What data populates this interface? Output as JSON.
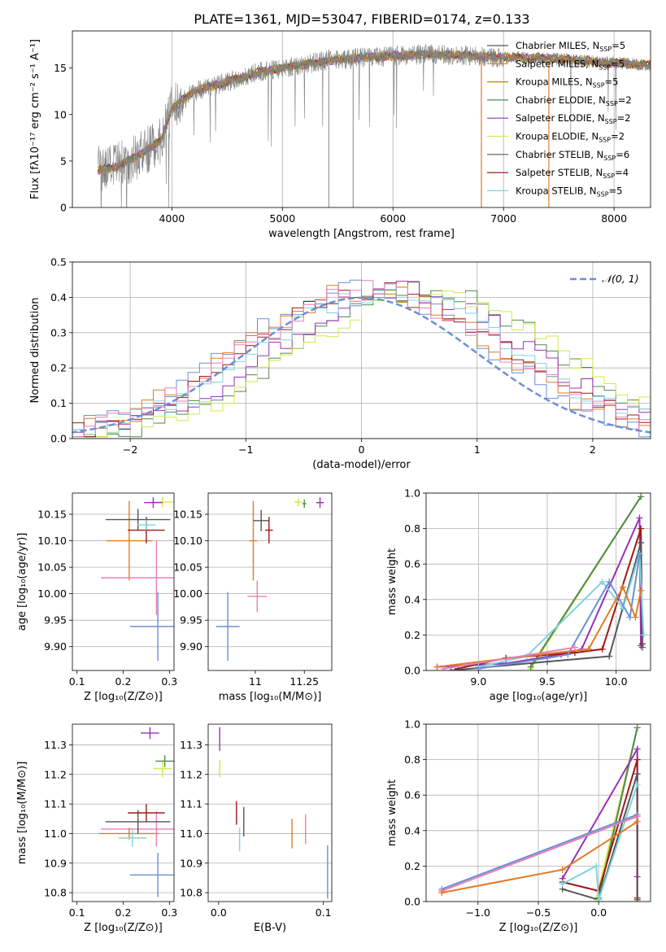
{
  "figure": {
    "title": "PLATE=1361, MJD=53047, FIBERID=0174, z=0.133"
  },
  "colors": {
    "chabrier_miles": "#6b8fd6",
    "salpeter_miles": "#e07b27",
    "kroupa_miles": "#b8860b",
    "chabrier_elodie": "#4e8a4e",
    "salpeter_elodie": "#9b30b5",
    "kroupa_elodie": "#d4e84a",
    "chabrier_stelib": "#555555",
    "salpeter_stelib": "#a01818",
    "kroupa_stelib": "#7fd4de",
    "pink": "#e87fb8",
    "normal_curve": "#6b8fd6"
  },
  "chart_data": [
    {
      "id": "spectrum",
      "type": "line",
      "title": "PLATE=1361, MJD=53047, FIBERID=0174, z=0.133",
      "xlabel": "wavelength [Angstrom, rest frame]",
      "ylabel": "Flux [fλ10⁻¹⁷ erg cm⁻² s⁻¹ A⁻¹]",
      "xlim": [
        3100,
        8330
      ],
      "ylim": [
        0,
        19
      ],
      "xticks": [
        4000,
        5000,
        6000,
        7000,
        8000
      ],
      "yticks": [
        0,
        5,
        10,
        15
      ],
      "grid": "vertical",
      "legend_position": "right",
      "legend": [
        {
          "label": "Chabrier MILES, N",
          "sub": "SSP",
          "suffix": "=5",
          "color": "chabrier_stelib"
        },
        {
          "label": "Salpeter MILES, N",
          "sub": "SSP",
          "suffix": "=5",
          "color": "salpeter_miles"
        },
        {
          "label": "Kroupa MILES, N",
          "sub": "SSP",
          "suffix": "=5",
          "color": "kroupa_miles"
        },
        {
          "label": "Chabrier ELODIE, N",
          "sub": "SSP",
          "suffix": "=2",
          "color": "chabrier_elodie"
        },
        {
          "label": "Salpeter ELODIE, N",
          "sub": "SSP",
          "suffix": "=2",
          "color": "salpeter_elodie"
        },
        {
          "label": "Kroupa ELODIE, N",
          "sub": "SSP",
          "suffix": "=2",
          "color": "kroupa_elodie"
        },
        {
          "label": "Chabrier STELIB, N",
          "sub": "SSP",
          "suffix": "=6",
          "color": "chabrier_stelib"
        },
        {
          "label": "Salpeter STELIB, N",
          "sub": "SSP",
          "suffix": "=4",
          "color": "salpeter_stelib"
        },
        {
          "label": "Kroupa STELIB, N",
          "sub": "SSP",
          "suffix": "=5",
          "color": "kroupa_stelib"
        }
      ],
      "continuum": [
        [
          3330,
          4.0
        ],
        [
          3500,
          4.4
        ],
        [
          3700,
          5.6
        ],
        [
          3900,
          7.2
        ],
        [
          4000,
          10.6
        ],
        [
          4200,
          12.5
        ],
        [
          4500,
          13.5
        ],
        [
          4800,
          14.6
        ],
        [
          5100,
          15.2
        ],
        [
          5400,
          15.8
        ],
        [
          5700,
          16.1
        ],
        [
          6000,
          16.3
        ],
        [
          6300,
          16.5
        ],
        [
          6600,
          16.4
        ],
        [
          6900,
          16.2
        ],
        [
          7200,
          16.1
        ],
        [
          7500,
          16.0
        ],
        [
          7800,
          15.7
        ],
        [
          8100,
          15.5
        ],
        [
          8330,
          15.3
        ]
      ],
      "spikes": [
        {
          "x": 5420,
          "y_low": 0,
          "y_high": 17
        },
        {
          "x": 5640,
          "y_low": 0,
          "y_high": 17
        },
        {
          "x": 6800,
          "y_low": 0,
          "y_high": 16
        },
        {
          "x": 7410,
          "y_low": 0,
          "y_high": 16
        }
      ]
    },
    {
      "id": "residual-histogram",
      "type": "bar",
      "xlabel": "(data-model)/error",
      "ylabel": "Normed distribution",
      "xlim": [
        -2.5,
        2.5
      ],
      "ylim": [
        0,
        0.5
      ],
      "xticks": [
        -2,
        -1,
        0,
        1,
        2
      ],
      "yticks": [
        0.0,
        0.1,
        0.2,
        0.3,
        0.4,
        0.5
      ],
      "grid": true,
      "legend_position": "top-right",
      "legend": [
        {
          "label": "𝒩(0, 1)",
          "color": "normal_curve",
          "style": "dashed"
        }
      ],
      "histogram_series": [
        {
          "color": "chabrier_miles",
          "shift": 0.0
        },
        {
          "color": "salpeter_miles",
          "shift": 0.05
        },
        {
          "color": "chabrier_elodie",
          "shift": 0.55
        },
        {
          "color": "salpeter_elodie",
          "shift": 0.35
        },
        {
          "color": "kroupa_elodie",
          "shift": 0.6
        },
        {
          "color": "salpeter_stelib",
          "shift": 0.15
        },
        {
          "color": "kroupa_stelib",
          "shift": 0.25
        },
        {
          "color": "pink",
          "shift": 0.1
        }
      ]
    },
    {
      "id": "age-vs-Z",
      "type": "scatter",
      "xlabel": "Z [log₁₀(Z/Z⊙)]",
      "ylabel": "age  [log₁₀(age/yr)]",
      "xlim": [
        0.09,
        0.31
      ],
      "ylim": [
        9.855,
        10.19
      ],
      "xticks": [
        0.1,
        0.2,
        0.3
      ],
      "yticks": [
        9.9,
        9.95,
        10.0,
        10.05,
        10.1,
        10.15
      ],
      "points": [
        {
          "x": 0.275,
          "y": 9.938,
          "xerr": 0.06,
          "yerr": 0.065,
          "color": "chabrier_miles"
        },
        {
          "x": 0.213,
          "y": 10.1,
          "xerr": 0.05,
          "yerr": 0.075,
          "color": "salpeter_miles"
        },
        {
          "x": 0.272,
          "y": 10.03,
          "xerr": 0.12,
          "yerr": 0.07,
          "color": "pink"
        },
        {
          "x": 0.232,
          "y": 10.14,
          "xerr": 0.07,
          "yerr": 0.02,
          "color": "chabrier_stelib"
        },
        {
          "x": 0.25,
          "y": 10.12,
          "xerr": 0.04,
          "yerr": 0.025,
          "color": "salpeter_stelib"
        },
        {
          "x": 0.285,
          "y": 10.173,
          "xerr": 0.025,
          "yerr": 0.01,
          "color": "kroupa_elodie"
        },
        {
          "x": 0.265,
          "y": 10.172,
          "xerr": 0.02,
          "yerr": 0.01,
          "color": "salpeter_elodie"
        },
        {
          "x": 0.25,
          "y": 10.13,
          "xerr": 0.02,
          "yerr": 0.01,
          "color": "kroupa_stelib"
        }
      ]
    },
    {
      "id": "age-vs-mass",
      "type": "scatter",
      "xlabel": "mass [log₁₀(M/M⊙)]",
      "ylabel": "",
      "xlim": [
        10.76,
        11.39
      ],
      "ylim": [
        9.855,
        10.19
      ],
      "xticks": [
        11.0,
        11.25
      ],
      "yticks": [
        9.9,
        9.95,
        10.0,
        10.05,
        10.1,
        10.15
      ],
      "points": [
        {
          "x": 10.86,
          "y": 9.938,
          "xerr": 0.06,
          "yerr": 0.065,
          "color": "chabrier_miles"
        },
        {
          "x": 10.99,
          "y": 10.1,
          "xerr": 0.02,
          "yerr": 0.075,
          "color": "salpeter_miles"
        },
        {
          "x": 11.01,
          "y": 9.995,
          "xerr": 0.05,
          "yerr": 0.03,
          "color": "pink"
        },
        {
          "x": 11.03,
          "y": 10.138,
          "xerr": 0.04,
          "yerr": 0.02,
          "color": "chabrier_stelib"
        },
        {
          "x": 11.07,
          "y": 10.12,
          "xerr": 0.02,
          "yerr": 0.025,
          "color": "salpeter_stelib"
        },
        {
          "x": 11.22,
          "y": 10.173,
          "xerr": 0.02,
          "yerr": 0.008,
          "color": "kroupa_elodie"
        },
        {
          "x": 11.33,
          "y": 10.172,
          "xerr": 0.02,
          "yerr": 0.01,
          "color": "salpeter_elodie"
        },
        {
          "x": 11.25,
          "y": 10.17,
          "xerr": 0.01,
          "yerr": 0.008,
          "color": "chabrier_elodie"
        }
      ]
    },
    {
      "id": "massweight-vs-age",
      "type": "line",
      "xlabel": "age  [log₁₀(age/yr)]",
      "ylabel": "mass weight",
      "xlim": [
        8.62,
        10.25
      ],
      "ylim": [
        0,
        1.0
      ],
      "xticks": [
        9.0,
        9.5,
        10.0
      ],
      "yticks": [
        0.0,
        0.2,
        0.4,
        0.6,
        0.8,
        1.0
      ],
      "grid": true,
      "series": [
        {
          "color": "kroupa_elodie",
          "x": [
            9.38,
            10.18
          ],
          "y": [
            0.01,
            0.98
          ]
        },
        {
          "color": "chabrier_elodie",
          "x": [
            9.38,
            10.18
          ],
          "y": [
            0.02,
            0.98
          ]
        },
        {
          "color": "salpeter_elodie",
          "x": [
            8.7,
            9.2,
            9.6,
            9.75,
            10.17,
            10.18
          ],
          "y": [
            0.02,
            0.04,
            0.09,
            0.12,
            0.86,
            0.14
          ]
        },
        {
          "color": "salpeter_stelib",
          "x": [
            8.85,
            9.2,
            9.7,
            9.9,
            10.18,
            10.19
          ],
          "y": [
            0.01,
            0.07,
            0.1,
            0.12,
            0.8,
            0.15
          ]
        },
        {
          "color": "chabrier_stelib",
          "x": [
            8.8,
            9.5,
            9.95,
            10.18,
            10.19
          ],
          "y": [
            0.0,
            0.05,
            0.08,
            0.72,
            0.13
          ]
        },
        {
          "color": "kroupa_stelib",
          "x": [
            9.0,
            9.35,
            9.9,
            10.05,
            10.17,
            10.2
          ],
          "y": [
            0.02,
            0.08,
            0.5,
            0.35,
            0.66,
            0.2
          ]
        },
        {
          "color": "chabrier_miles",
          "x": [
            9.0,
            9.5,
            9.65,
            9.95,
            10.1,
            10.17
          ],
          "y": [
            0.01,
            0.07,
            0.09,
            0.5,
            0.3,
            0.65
          ]
        },
        {
          "color": "salpeter_miles",
          "x": [
            8.7,
            9.45,
            9.8,
            10.05,
            10.14,
            10.18
          ],
          "y": [
            0.02,
            0.09,
            0.12,
            0.47,
            0.3,
            0.45
          ]
        },
        {
          "color": "pink",
          "x": [
            8.75,
            9.7
          ],
          "y": [
            0.01,
            0.13
          ]
        }
      ]
    },
    {
      "id": "mass-vs-Z",
      "type": "scatter",
      "xlabel": "Z [log₁₀(Z/Z⊙)]",
      "ylabel": "mass [log₁₀(M/M⊙)]",
      "xlim": [
        0.09,
        0.31
      ],
      "ylim": [
        10.77,
        11.37
      ],
      "xticks": [
        0.1,
        0.2,
        0.3
      ],
      "yticks": [
        10.8,
        10.9,
        11.0,
        11.1,
        11.2,
        11.3
      ],
      "points": [
        {
          "x": 0.275,
          "y": 10.86,
          "xerr": 0.06,
          "yerr": 0.075,
          "color": "chabrier_miles"
        },
        {
          "x": 0.213,
          "y": 11.0,
          "xerr": 0.065,
          "yerr": 0.02,
          "color": "salpeter_miles"
        },
        {
          "x": 0.272,
          "y": 11.015,
          "xerr": 0.12,
          "yerr": 0.06,
          "color": "pink"
        },
        {
          "x": 0.22,
          "y": 10.985,
          "xerr": 0.03,
          "yerr": 0.03,
          "color": "kroupa_stelib"
        },
        {
          "x": 0.232,
          "y": 11.04,
          "xerr": 0.07,
          "yerr": 0.04,
          "color": "chabrier_stelib"
        },
        {
          "x": 0.25,
          "y": 11.07,
          "xerr": 0.04,
          "yerr": 0.03,
          "color": "salpeter_stelib"
        },
        {
          "x": 0.285,
          "y": 11.22,
          "xerr": 0.02,
          "yerr": 0.03,
          "color": "kroupa_elodie"
        },
        {
          "x": 0.29,
          "y": 11.245,
          "xerr": 0.02,
          "yerr": 0.02,
          "color": "chabrier_elodie"
        },
        {
          "x": 0.258,
          "y": 11.34,
          "xerr": 0.02,
          "yerr": 0.02,
          "color": "salpeter_elodie"
        }
      ]
    },
    {
      "id": "mass-vs-EBV",
      "type": "scatter",
      "xlabel": "E(B-V)",
      "ylabel": "",
      "xlim": [
        -0.01,
        0.108
      ],
      "ylim": [
        10.77,
        11.37
      ],
      "xticks": [
        0.0,
        0.1
      ],
      "yticks": [
        10.8,
        10.9,
        11.0,
        11.1,
        11.2,
        11.3
      ],
      "points": [
        {
          "x": 0.104,
          "y": 10.87,
          "xerr": 0,
          "yerr": 0.09,
          "color": "chabrier_miles"
        },
        {
          "x": 0.07,
          "y": 11.0,
          "xerr": 0,
          "yerr": 0.05,
          "color": "salpeter_miles"
        },
        {
          "x": 0.083,
          "y": 11.015,
          "xerr": 0,
          "yerr": 0.05,
          "color": "pink"
        },
        {
          "x": 0.02,
          "y": 10.98,
          "xerr": 0,
          "yerr": 0.04,
          "color": "kroupa_stelib"
        },
        {
          "x": 0.024,
          "y": 11.04,
          "xerr": 0,
          "yerr": 0.05,
          "color": "chabrier_stelib"
        },
        {
          "x": 0.017,
          "y": 11.07,
          "xerr": 0,
          "yerr": 0.04,
          "color": "salpeter_stelib"
        },
        {
          "x": 0.001,
          "y": 11.22,
          "xerr": 0,
          "yerr": 0.03,
          "color": "kroupa_elodie"
        },
        {
          "x": 0.001,
          "y": 11.32,
          "xerr": 0,
          "yerr": 0.04,
          "color": "salpeter_elodie"
        }
      ]
    },
    {
      "id": "massweight-vs-Z",
      "type": "line",
      "xlabel": "Z [log₁₀(Z/Z⊙)]",
      "ylabel": "mass weight",
      "xlim": [
        -1.43,
        0.43
      ],
      "ylim": [
        0,
        1.0
      ],
      "xticks": [
        -1.0,
        -0.5,
        0.0
      ],
      "yticks": [
        0.0,
        0.2,
        0.4,
        0.6,
        0.8,
        1.0
      ],
      "grid": true,
      "series": [
        {
          "color": "kroupa_elodie",
          "x": [
            -0.02,
            0.32
          ],
          "y": [
            0.01,
            0.98
          ]
        },
        {
          "color": "chabrier_elodie",
          "x": [
            0.0,
            0.32
          ],
          "y": [
            0.02,
            0.98
          ]
        },
        {
          "color": "salpeter_elodie",
          "x": [
            -0.3,
            0.32,
            0.32
          ],
          "y": [
            0.13,
            0.86,
            0.14
          ]
        },
        {
          "color": "salpeter_stelib",
          "x": [
            -0.3,
            0.0,
            0.32,
            0.32
          ],
          "y": [
            0.11,
            0.06,
            0.8,
            0.02
          ]
        },
        {
          "color": "chabrier_stelib",
          "x": [
            -0.3,
            0.0,
            0.32,
            0.32
          ],
          "y": [
            0.07,
            0.01,
            0.72,
            0.01
          ]
        },
        {
          "color": "kroupa_stelib",
          "x": [
            -0.3,
            -0.02,
            0.0,
            0.32
          ],
          "y": [
            0.1,
            0.2,
            0.01,
            0.66
          ]
        },
        {
          "color": "chabrier_miles",
          "x": [
            -1.3,
            0.32
          ],
          "y": [
            0.07,
            0.49
          ]
        },
        {
          "color": "pink",
          "x": [
            -1.3,
            0.32
          ],
          "y": [
            0.06,
            0.48
          ]
        },
        {
          "color": "salpeter_miles",
          "x": [
            -1.3,
            -0.3,
            0.32
          ],
          "y": [
            0.05,
            0.18,
            0.45
          ]
        }
      ]
    }
  ]
}
